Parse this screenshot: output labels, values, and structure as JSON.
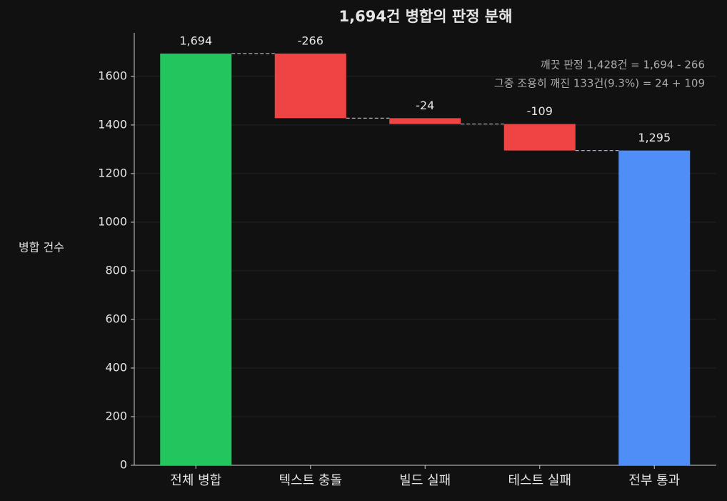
{
  "chart_data": {
    "type": "waterfall",
    "title": "1,694건 병합의 판정 분해",
    "y_label": "병합 건수",
    "categories": [
      "전체 병합",
      "텍스트 충돌",
      "빌드 실패",
      "테스트 실패",
      "전부 통과"
    ],
    "values": [
      1694,
      -266,
      -24,
      -109,
      1295
    ],
    "value_labels": [
      "1,694",
      "-266",
      "-24",
      "-109",
      "1,295"
    ],
    "colors": [
      "#22c55e",
      "#ef4444",
      "#ef4444",
      "#ef4444",
      "#4f8ef7"
    ],
    "annotations": [
      "깨끗 판정 1,428건 = 1,694 - 266",
      "그중 조용히 깨진 133건(9.3%) = 24 + 109"
    ],
    "ylim": [
      0,
      1779
    ],
    "yticks": [
      0,
      200,
      400,
      600,
      800,
      1000,
      1200,
      1400,
      1600
    ],
    "grid": true
  }
}
